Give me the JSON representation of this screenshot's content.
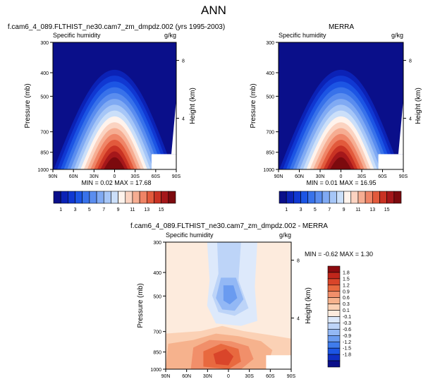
{
  "page_title": "ANN",
  "colors": {
    "sh_scale": [
      "#0a0f8a",
      "#0b22b6",
      "#1038d2",
      "#1c55e4",
      "#3872ea",
      "#5a8def",
      "#80aaf3",
      "#a6c6f7",
      "#cbdff9",
      "#fff3ec",
      "#fbd3c1",
      "#f6ad92",
      "#ef8466",
      "#e25a3c",
      "#c93223",
      "#a5171a",
      "#7c0a0e"
    ],
    "diff_scale": [
      "#0a0f8a",
      "#0f2fc4",
      "#1c55e4",
      "#3f7cec",
      "#6a9bf0",
      "#93b8f5",
      "#bdd4f8",
      "#dde9fb",
      "#fdebdd",
      "#fbd1b5",
      "#f6b28d",
      "#f18f6a",
      "#e8693f",
      "#d9452a",
      "#c1261b",
      "#8c0b0f"
    ]
  },
  "chart_data": [
    {
      "type": "heatmap",
      "title": "f.cam6_4_089.FLTHIST_ne30.cam7_zm_dmpdz.002 (yrs 1995-2003)",
      "subtitle_left": "Specific humidity",
      "subtitle_right": "g/kg",
      "ylabel": "Pressure (mb)",
      "ylabel_right": "Height (km)",
      "x_ticks": [
        "90N",
        "60N",
        "30N",
        "0",
        "30S",
        "60S",
        "90S"
      ],
      "x": [
        90,
        60,
        30,
        0,
        -30,
        -60,
        -90
      ],
      "y_ticks": [
        300,
        400,
        500,
        700,
        850,
        1000
      ],
      "y_right_ticks": [
        8,
        4
      ],
      "ylim": [
        1000,
        300
      ],
      "xlim": [
        90,
        -90
      ],
      "stats": "MIN =  0.02  MAX = 17.68",
      "min": 0.02,
      "max": 17.68,
      "peak_lat": 0,
      "colorbar_labels": [
        "1",
        "3",
        "5",
        "7",
        "9",
        "11",
        "13",
        "15"
      ]
    },
    {
      "type": "heatmap",
      "title": "MERRA",
      "subtitle_left": "Specific humidity",
      "subtitle_right": "g/kg",
      "ylabel": "Pressure (mb)",
      "ylabel_right": "Height (km)",
      "x_ticks": [
        "90N",
        "60N",
        "30N",
        "0",
        "30S",
        "60S",
        "90S"
      ],
      "x": [
        90,
        60,
        30,
        0,
        -30,
        -60,
        -90
      ],
      "y_ticks": [
        300,
        400,
        500,
        700,
        850,
        1000
      ],
      "y_right_ticks": [
        8,
        4
      ],
      "ylim": [
        1000,
        300
      ],
      "xlim": [
        90,
        -90
      ],
      "stats": "MIN =  0.01  MAX = 16.95",
      "min": 0.01,
      "max": 16.95,
      "peak_lat": 0,
      "colorbar_labels": [
        "1",
        "3",
        "5",
        "7",
        "9",
        "11",
        "13",
        "15"
      ]
    },
    {
      "type": "heatmap",
      "title": "f.cam6_4_089.FLTHIST_ne30.cam7_zm_dmpdz.002 - MERRA",
      "subtitle_left": "Specific humidity",
      "subtitle_right": "g/kg",
      "ylabel": "Pressure (mb)",
      "ylabel_right": "Height (km)",
      "x_ticks": [
        "90N",
        "60N",
        "30N",
        "0",
        "30S",
        "60S",
        "90S"
      ],
      "x": [
        90,
        60,
        30,
        0,
        -30,
        -60,
        -90
      ],
      "y_ticks": [
        300,
        400,
        500,
        700,
        850,
        1000
      ],
      "y_right_ticks": [
        8,
        4
      ],
      "ylim": [
        1000,
        300
      ],
      "xlim": [
        90,
        -90
      ],
      "stats": "MIN = -0.62  MAX =  1.30",
      "min": -0.62,
      "max": 1.3,
      "colorbar_labels": [
        "1.8",
        "1.5",
        "1.2",
        "0.9",
        "0.6",
        "0.3",
        "0.1",
        "-0.1",
        "-0.3",
        "-0.6",
        "-0.9",
        "-1.2",
        "-1.5",
        "-1.8"
      ]
    }
  ]
}
